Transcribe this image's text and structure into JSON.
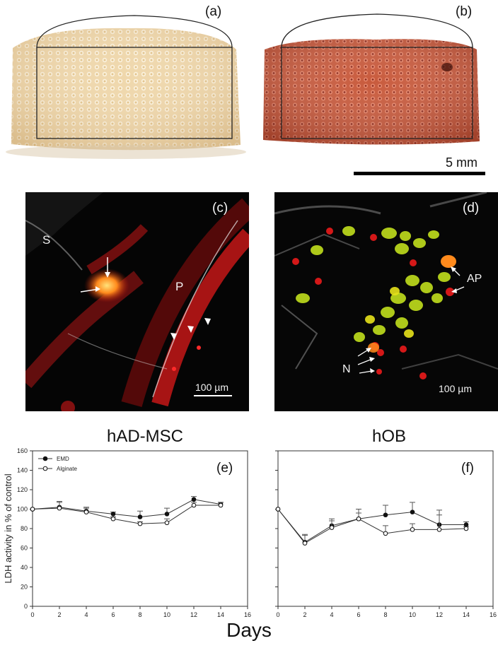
{
  "panels": {
    "a": {
      "label": "(a)"
    },
    "b": {
      "label": "(b)"
    },
    "c": {
      "label": "(c)",
      "marker_s": "S",
      "marker_p": "P",
      "scale": "100 µm"
    },
    "d": {
      "label": "(d)",
      "marker_ap": "AP",
      "marker_n": "N",
      "scale": "100 µm"
    },
    "e": {
      "label": "(e)"
    },
    "f": {
      "label": "(f)"
    }
  },
  "scale_top": "5 mm",
  "colors": {
    "scaffold_a": "#e8cc9a",
    "scaffold_b": "#c0553a",
    "fluor_orange": "#ff8a1c",
    "fluor_red": "#d41818",
    "fluor_green": "#9ccc1c"
  },
  "chart_data": [
    {
      "type": "line",
      "title": "hAD-MSC",
      "panel": "(e)",
      "ylabel": "LDH activity in % of control",
      "xlabel": "Days",
      "ylim": [
        0,
        160
      ],
      "xlim": [
        0,
        16
      ],
      "x": [
        0,
        2,
        4,
        6,
        8,
        10,
        12,
        14
      ],
      "xticks": [
        0,
        2,
        4,
        6,
        8,
        10,
        12,
        14,
        16
      ],
      "yticks": [
        0,
        20,
        40,
        60,
        80,
        100,
        120,
        140,
        160
      ],
      "legend": "top-left",
      "series": [
        {
          "name": "EMD",
          "marker": "filled",
          "values": [
            100,
            102,
            98,
            95,
            92,
            95,
            110,
            105
          ],
          "errors": [
            0,
            6,
            4,
            2,
            6,
            6,
            3,
            2
          ]
        },
        {
          "name": "Alginate",
          "marker": "open",
          "values": [
            100,
            101,
            97,
            90,
            85,
            86,
            104,
            104
          ],
          "errors": [
            0,
            6,
            4,
            2,
            2,
            4,
            3,
            3
          ]
        }
      ]
    },
    {
      "type": "line",
      "title": "hOB",
      "panel": "(f)",
      "ylim": [
        0,
        160
      ],
      "xlim": [
        0,
        16
      ],
      "x": [
        0,
        2,
        4,
        6,
        8,
        10,
        12,
        14
      ],
      "xticks": [
        0,
        2,
        4,
        6,
        8,
        10,
        12,
        14,
        16
      ],
      "series": [
        {
          "name": "EMD",
          "marker": "filled",
          "values": [
            100,
            66,
            83,
            90,
            94,
            97,
            84,
            84
          ],
          "errors": [
            0,
            8,
            7,
            10,
            10,
            10,
            15,
            3
          ]
        },
        {
          "name": "Alginate",
          "marker": "open",
          "values": [
            100,
            65,
            81,
            90,
            75,
            79,
            79,
            80
          ],
          "errors": [
            0,
            8,
            7,
            6,
            8,
            6,
            15,
            2
          ]
        }
      ]
    }
  ]
}
